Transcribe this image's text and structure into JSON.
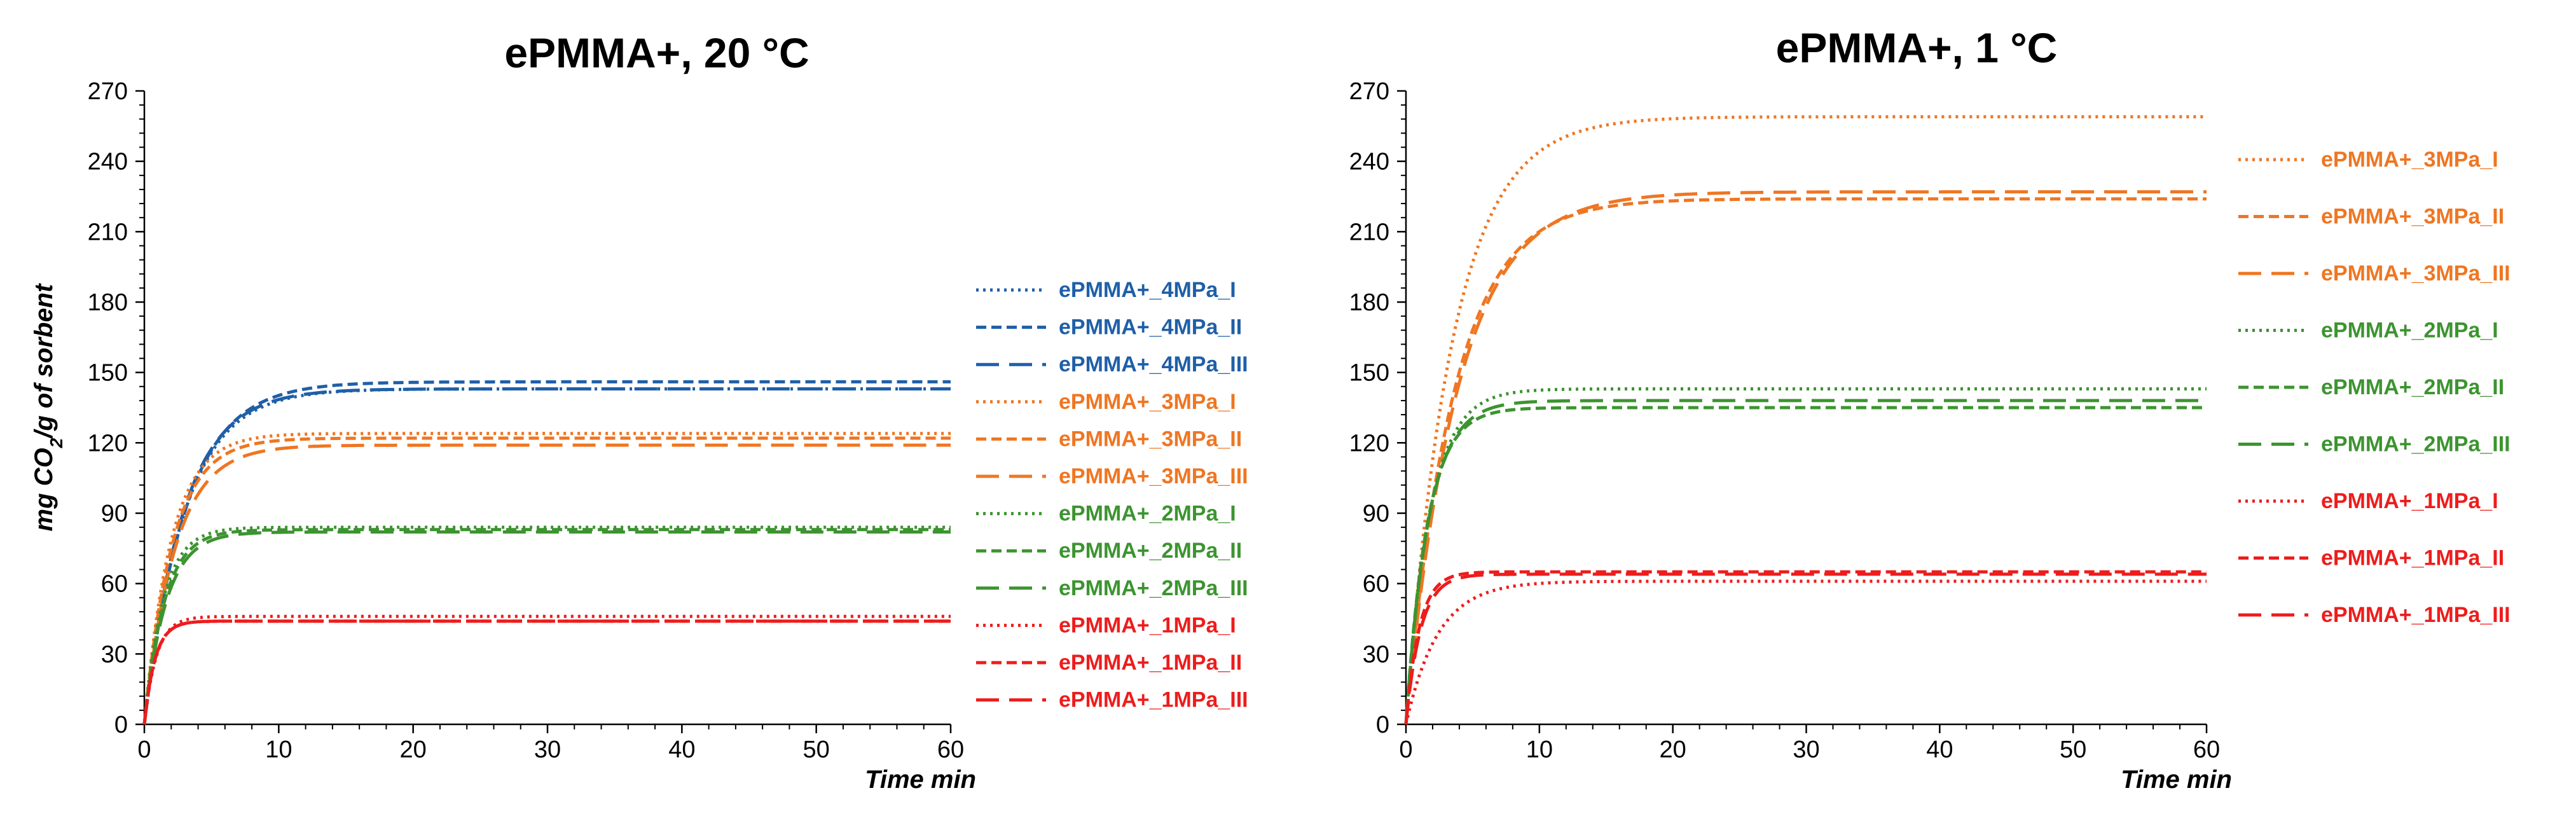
{
  "colors": {
    "blue": "#1f5fa8",
    "orange": "#ef7622",
    "green": "#3c9430",
    "red": "#ee1c1c"
  },
  "chart_data": [
    {
      "type": "line",
      "title": "ePMMA+, 20 °C",
      "xlabel": "Time min",
      "ylabel_prefix": "mg CO",
      "ylabel_sub": "2",
      "ylabel_suffix": "/g of sorbent",
      "xlim": [
        0,
        60
      ],
      "ylim": [
        0,
        270
      ],
      "xticks": [
        0,
        10,
        20,
        30,
        40,
        50,
        60
      ],
      "yticks": [
        0,
        30,
        60,
        90,
        120,
        150,
        180,
        210,
        240,
        270
      ],
      "grid": false,
      "legend_position": "right",
      "series": [
        {
          "name": "ePMMA+_4MPa_I",
          "color": "blue",
          "dash": "dotted",
          "plateau": 143,
          "tau": 3.0
        },
        {
          "name": "ePMMA+_4MPa_II",
          "color": "blue",
          "dash": "dashed",
          "plateau": 146,
          "tau": 3.1
        },
        {
          "name": "ePMMA+_4MPa_III",
          "color": "blue",
          "dash": "longdash",
          "plateau": 143,
          "tau": 2.9
        },
        {
          "name": "ePMMA+_3MPa_I",
          "color": "orange",
          "dash": "dotted",
          "plateau": 124,
          "tau": 2.0
        },
        {
          "name": "ePMMA+_3MPa_II",
          "color": "orange",
          "dash": "dashed",
          "plateau": 122,
          "tau": 2.1
        },
        {
          "name": "ePMMA+_3MPa_III",
          "color": "orange",
          "dash": "longdash",
          "plateau": 119,
          "tau": 2.3
        },
        {
          "name": "ePMMA+_2MPa_I",
          "color": "green",
          "dash": "dotted",
          "plateau": 84,
          "tau": 1.4
        },
        {
          "name": "ePMMA+_2MPa_II",
          "color": "green",
          "dash": "dashed",
          "plateau": 83,
          "tau": 1.5
        },
        {
          "name": "ePMMA+_2MPa_III",
          "color": "green",
          "dash": "longdash",
          "plateau": 82,
          "tau": 1.6
        },
        {
          "name": "ePMMA+_1MPa_I",
          "color": "red",
          "dash": "dotted",
          "plateau": 46,
          "tau": 0.9
        },
        {
          "name": "ePMMA+_1MPa_II",
          "color": "red",
          "dash": "dashed",
          "plateau": 44,
          "tau": 0.8
        },
        {
          "name": "ePMMA+_1MPa_III",
          "color": "red",
          "dash": "longdash",
          "plateau": 44,
          "tau": 0.8
        }
      ]
    },
    {
      "type": "line",
      "title": "ePMMA+, 1 °C",
      "xlabel": "Time min",
      "xlim": [
        0,
        60
      ],
      "ylim": [
        0,
        270
      ],
      "xticks": [
        0,
        10,
        20,
        30,
        40,
        50,
        60
      ],
      "yticks": [
        0,
        30,
        60,
        90,
        120,
        150,
        180,
        210,
        240,
        270
      ],
      "grid": false,
      "legend_position": "right",
      "series": [
        {
          "name": "ePMMA+_3MPa_I",
          "color": "orange",
          "dash": "dotted",
          "plateau": 259,
          "tau": 3.5
        },
        {
          "name": "ePMMA+_3MPa_II",
          "color": "orange",
          "dash": "dashed",
          "plateau": 224,
          "tau": 3.6
        },
        {
          "name": "ePMMA+_3MPa_III",
          "color": "orange",
          "dash": "longdash",
          "plateau": 227,
          "tau": 3.9
        },
        {
          "name": "ePMMA+_2MPa_I",
          "color": "green",
          "dash": "dotted",
          "plateau": 143,
          "tau": 1.8
        },
        {
          "name": "ePMMA+_2MPa_II",
          "color": "green",
          "dash": "dashed",
          "plateau": 135,
          "tau": 1.6
        },
        {
          "name": "ePMMA+_2MPa_III",
          "color": "green",
          "dash": "longdash",
          "plateau": 138,
          "tau": 1.7
        },
        {
          "name": "ePMMA+_1MPa_I",
          "color": "red",
          "dash": "dotted",
          "plateau": 61,
          "tau": 2.4
        },
        {
          "name": "ePMMA+_1MPa_II",
          "color": "red",
          "dash": "dashed",
          "plateau": 65,
          "tau": 1.0
        },
        {
          "name": "ePMMA+_1MPa_III",
          "color": "red",
          "dash": "longdash",
          "plateau": 64,
          "tau": 1.1
        }
      ]
    }
  ]
}
